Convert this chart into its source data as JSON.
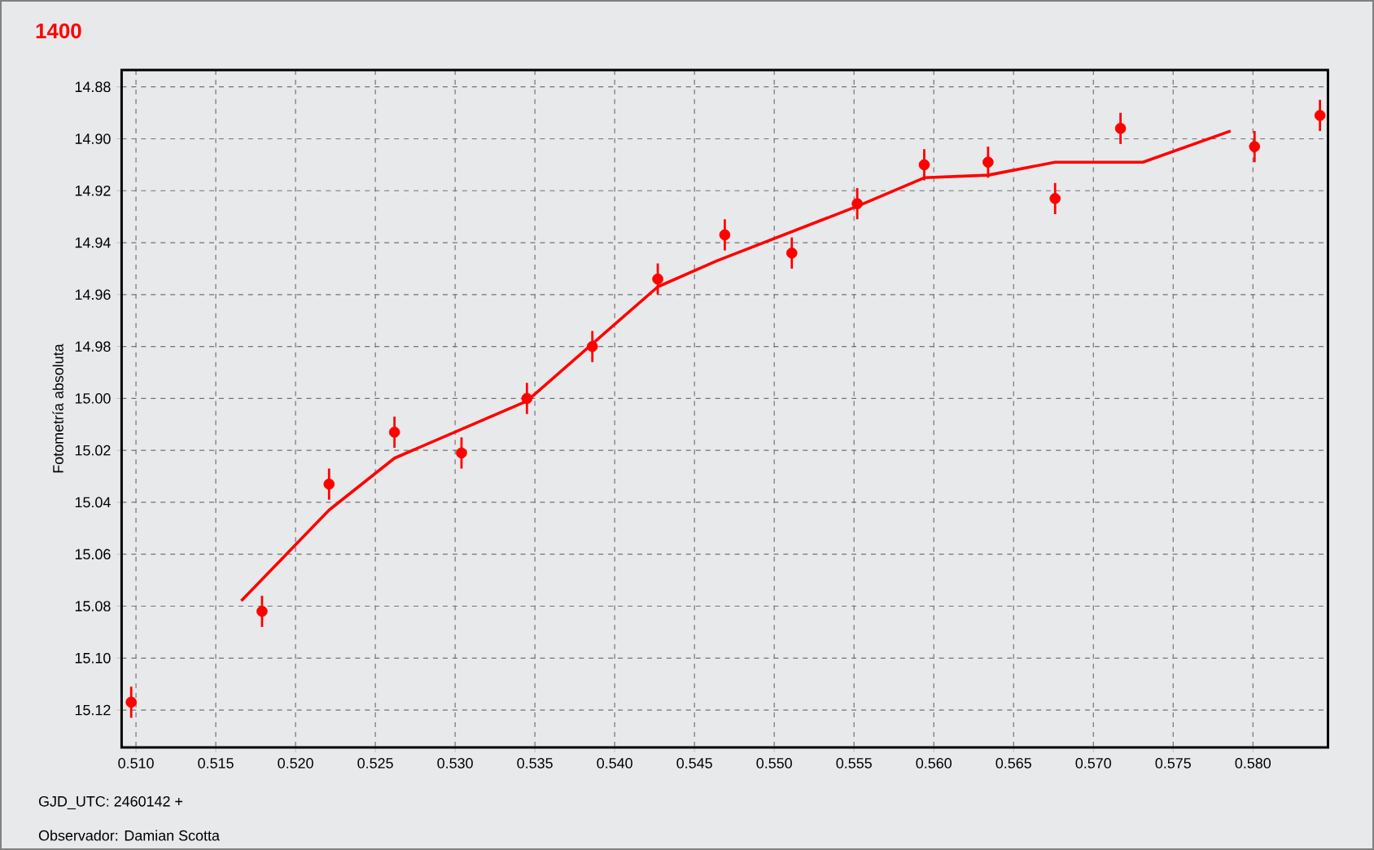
{
  "chart_data": {
    "type": "scatter",
    "title": "1400",
    "ylabel": "Fotometría absoluta",
    "annotations": [
      "GJD_UTC: 2460142 +",
      "Observador: Damian Scotta"
    ],
    "xlim": [
      0.5091,
      0.5847
    ],
    "ylim": [
      15.1344,
      14.8735
    ],
    "xticks": [
      {
        "value": 0.51,
        "label": "0.510"
      },
      0.515,
      {
        "value": 0.52,
        "label": "0.520"
      },
      0.525,
      {
        "value": 0.53,
        "label": "0.530"
      },
      0.535,
      {
        "value": 0.54,
        "label": "0.540"
      },
      0.545,
      {
        "value": 0.55,
        "label": "0.550"
      },
      0.555,
      {
        "value": 0.56,
        "label": "0.560"
      },
      0.565,
      {
        "value": 0.57,
        "label": "0.570"
      },
      0.575,
      {
        "value": 0.58,
        "label": "0.580"
      }
    ],
    "yticks": [
      14.88,
      {
        "value": 14.9,
        "label": "14.90"
      },
      14.92,
      14.94,
      14.96,
      14.98,
      {
        "value": 15.0,
        "label": "15.00"
      },
      15.02,
      15.04,
      15.06,
      15.08,
      {
        "value": 15.1,
        "label": "15.10"
      },
      15.12
    ],
    "grid": true,
    "series": [
      {
        "color": "#ff0000",
        "marker": "circle",
        "x": [
          0.5097,
          0.5179,
          0.5221,
          0.5262,
          0.5304,
          0.5345,
          0.5386,
          0.5427,
          0.5469,
          0.5511,
          0.5552,
          0.5594,
          0.5634,
          0.5676,
          0.5717,
          0.5801,
          0.5842
        ],
        "values": [
          15.117,
          15.082,
          15.033,
          15.013,
          15.021,
          15.0,
          14.98,
          14.954,
          14.937,
          14.944,
          14.925,
          14.91,
          14.909,
          14.923,
          14.896,
          14.903,
          14.891
        ],
        "errors": [
          0.006,
          0.006,
          0.006,
          0.006,
          0.006,
          0.006,
          0.006,
          0.006,
          0.006,
          0.006,
          0.006,
          0.006,
          0.006,
          0.006,
          0.006,
          0.006,
          0.006
        ]
      },
      {
        "type": "line",
        "color": "#ff0000",
        "marker": "none",
        "line_style": "solid",
        "x": [
          0.5166,
          0.5221,
          0.5262,
          0.5345,
          0.5427,
          0.5464,
          0.5552,
          0.5594,
          0.5634,
          0.5676,
          0.5704,
          0.5731,
          0.5786
        ],
        "values": [
          15.078,
          15.043,
          15.023,
          15.001,
          14.957,
          14.947,
          14.926,
          14.915,
          14.914,
          14.909,
          14.909,
          14.909,
          14.897
        ]
      }
    ]
  }
}
